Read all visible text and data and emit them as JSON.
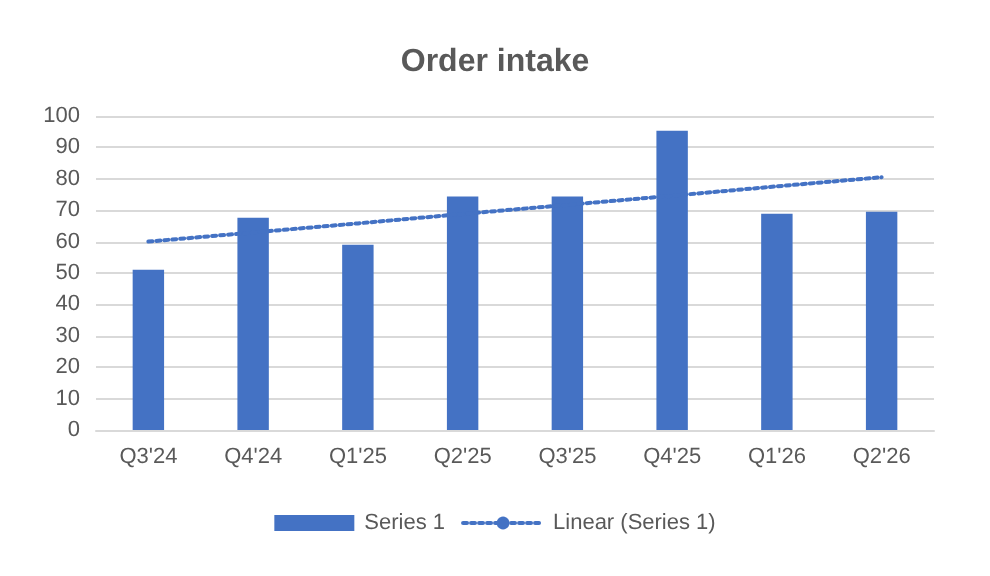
{
  "chart_data": {
    "type": "bar",
    "title": "Order intake",
    "categories": [
      "Q3'24",
      "Q4'24",
      "Q1'25",
      "Q2'25",
      "Q3'25",
      "Q4'25",
      "Q1'26",
      "Q2'26"
    ],
    "series": [
      {
        "name": "Series 1",
        "color": "#4472c4",
        "values": [
          51,
          67.6,
          59,
          74.4,
          74.4,
          95.3,
          68.9,
          69.5
        ]
      },
      {
        "name": "Linear (Series 1)",
        "type": "line",
        "color": "#4472c4",
        "line_style": "dotted",
        "marker": "none",
        "values": [
          60,
          62.9,
          65.8,
          68.8,
          71.7,
          74.6,
          77.6,
          80.5
        ]
      }
    ],
    "ylim": [
      0,
      100
    ],
    "yticks": [
      0,
      10,
      20,
      30,
      40,
      50,
      60,
      70,
      80,
      90,
      100
    ],
    "grid": "y",
    "legend": "bottom"
  }
}
